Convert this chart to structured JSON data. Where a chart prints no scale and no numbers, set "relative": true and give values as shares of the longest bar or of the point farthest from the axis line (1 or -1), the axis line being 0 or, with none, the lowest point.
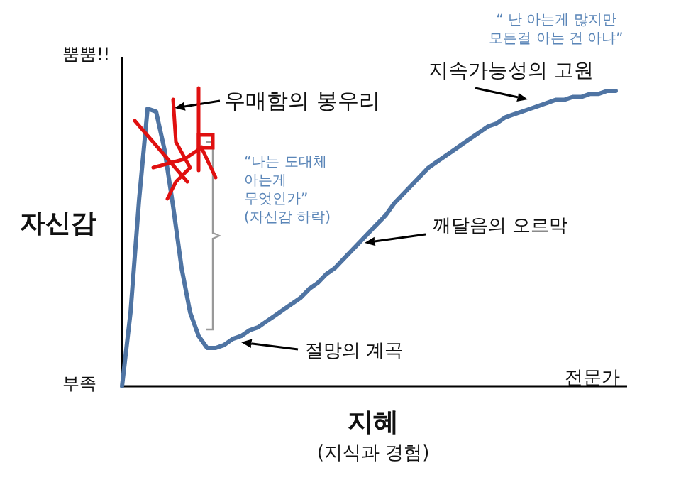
{
  "chart_data": {
    "type": "line",
    "relative": true,
    "xlabel": "지혜",
    "ylabel": "자신감",
    "annotations": [
      "뿜뿜!!",
      "부족",
      "전문가",
      "(지식과 경험)",
      "우매함의 봉우리",
      "“나는 도대체\n아는게\n무엇인가”\n(자신감 하락)",
      "절망의 계곡",
      "깨달음의 오르막",
      "지속가능성의 고원",
      "“ 난 아는게 많지만\n모든걸 아는 건 아냐”"
    ],
    "categories": [
      null,
      null,
      null,
      null,
      null,
      null,
      null,
      null,
      null,
      null,
      null,
      null,
      null,
      null,
      null,
      null,
      null,
      null,
      null,
      null,
      null,
      null,
      null,
      null,
      null,
      null,
      null,
      null,
      null,
      null,
      null,
      null,
      null,
      null,
      null,
      null,
      null,
      null,
      null,
      null,
      null,
      null,
      null,
      null,
      null,
      null,
      null,
      null,
      null,
      null,
      null,
      null,
      null,
      null,
      null,
      null,
      null,
      null,
      null
    ],
    "color": "#4f74a3",
    "values": [
      0,
      0.25,
      0.63,
      0.94,
      0.93,
      0.8,
      0.61,
      0.4,
      0.25,
      0.17,
      0.13,
      0.13,
      0.14,
      0.16,
      0.17,
      0.19,
      0.2,
      0.22,
      0.24,
      0.26,
      0.28,
      0.3,
      0.33,
      0.35,
      0.38,
      0.4,
      0.43,
      0.46,
      0.49,
      0.52,
      0.55,
      0.58,
      0.62,
      0.65,
      0.68,
      0.71,
      0.74,
      0.76,
      0.78,
      0.8,
      0.82,
      0.84,
      0.86,
      0.88,
      0.89,
      0.91,
      0.92,
      0.93,
      0.94,
      0.95,
      0.96,
      0.97,
      0.97,
      0.98,
      0.98,
      0.99,
      0.99,
      1.0,
      1.0
    ]
  }
}
